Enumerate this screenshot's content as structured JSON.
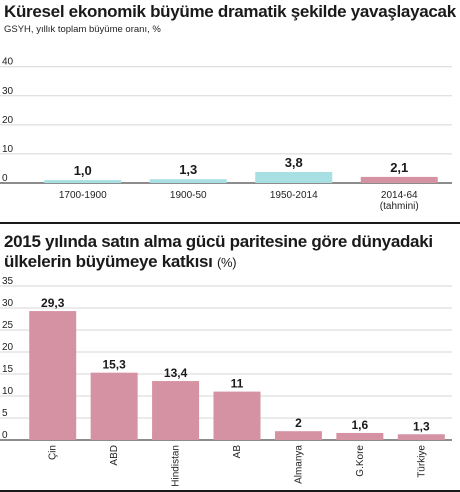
{
  "chart_data": [
    {
      "type": "bar",
      "title": "Küresel ekonomik büyüme dramatik şekilde yavaşlayacak",
      "subtitle": "GSYH, yıllık toplam büyüme oranı, %",
      "categories": [
        "1700-1900",
        "1900-50",
        "1950-2014",
        "2014-64"
      ],
      "category_notes": [
        "",
        "",
        "",
        "(tahmini)"
      ],
      "values": [
        1.0,
        1.3,
        3.8,
        2.1
      ],
      "value_labels": [
        "1,0",
        "1,3",
        "3,8",
        "2,1"
      ],
      "bar_colors": [
        "#a8dfe2",
        "#a8dfe2",
        "#a8dfe2",
        "#d592a2"
      ],
      "yticks": [
        0,
        10,
        20,
        30,
        40
      ],
      "ylim": [
        0,
        43
      ],
      "xlabel": "",
      "ylabel": ""
    },
    {
      "type": "bar",
      "title": "2015 yılında satın alma gücü paritesine göre dünyadaki ülkelerin büyümeye katkısı",
      "title_unit": "(%)",
      "categories": [
        "Çin",
        "ABD",
        "Hindistan",
        "AB",
        "Almanya",
        "G.Kore",
        "Türkiye"
      ],
      "values": [
        29.3,
        15.3,
        13.4,
        11,
        2,
        1.6,
        1.3
      ],
      "value_labels": [
        "29,3",
        "15,3",
        "13,4",
        "11",
        "2",
        "1,6",
        "1,3"
      ],
      "bar_color": "#d592a2",
      "yticks": [
        0,
        5,
        10,
        15,
        20,
        25,
        30,
        35
      ],
      "ylim": [
        0,
        35
      ],
      "xlabel": "",
      "ylabel": ""
    }
  ]
}
